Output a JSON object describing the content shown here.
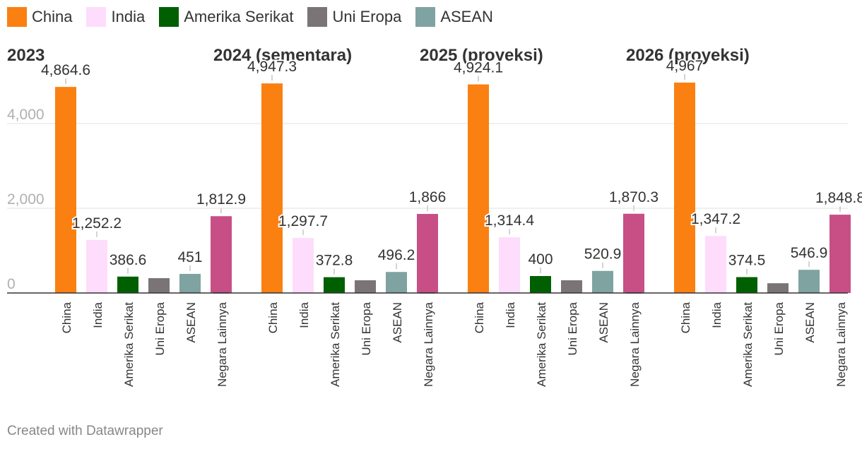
{
  "legend": [
    {
      "label": "China",
      "color": "#fa8011"
    },
    {
      "label": "India",
      "color": "#fedcfb"
    },
    {
      "label": "Amerika Serikat",
      "color": "#005f00"
    },
    {
      "label": "Uni Eropa",
      "color": "#7b7476"
    },
    {
      "label": "ASEAN",
      "color": "#7fa3a0"
    }
  ],
  "footer": "Created with Datawrapper",
  "chart_data": {
    "type": "bar",
    "categories": [
      "China",
      "India",
      "Amerika Serikat",
      "Uni Eropa",
      "ASEAN",
      "Negara Lainnya"
    ],
    "colors": [
      "#fa8011",
      "#fedcfb",
      "#005f00",
      "#7b7476",
      "#7fa3a0",
      "#c74f85"
    ],
    "ylim": [
      0,
      5000
    ],
    "yticks": [
      0,
      2000,
      4000
    ],
    "ytick_labels": [
      "0",
      "2,000",
      "4,000"
    ],
    "grid": true,
    "legend_position": "top-left",
    "panels": [
      {
        "title": "2023",
        "values": [
          4864.6,
          1252.2,
          386.6,
          350,
          451,
          1812.9
        ],
        "labels": [
          "4,864.6",
          "1,252.2",
          "386.6",
          "",
          "451",
          "1,812.9"
        ]
      },
      {
        "title": "2024 (sementara)",
        "values": [
          4947.3,
          1297.7,
          372.8,
          300,
          496.2,
          1866
        ],
        "labels": [
          "4,947.3",
          "1,297.7",
          "372.8",
          "",
          "496.2",
          "1,866"
        ]
      },
      {
        "title": "2025 (proyeksi)",
        "values": [
          4924.1,
          1314.4,
          400,
          300,
          520.9,
          1870.3
        ],
        "labels": [
          "4,924.1",
          "1,314.4",
          "400",
          "",
          "520.9",
          "1,870.3"
        ]
      },
      {
        "title": "2026 (proyeksi)",
        "values": [
          4967,
          1347.2,
          374.5,
          230,
          546.9,
          1848.8
        ],
        "labels": [
          "4,967",
          "1,347.2",
          "374.5",
          "",
          "546.9",
          "1,848.8"
        ]
      }
    ]
  }
}
